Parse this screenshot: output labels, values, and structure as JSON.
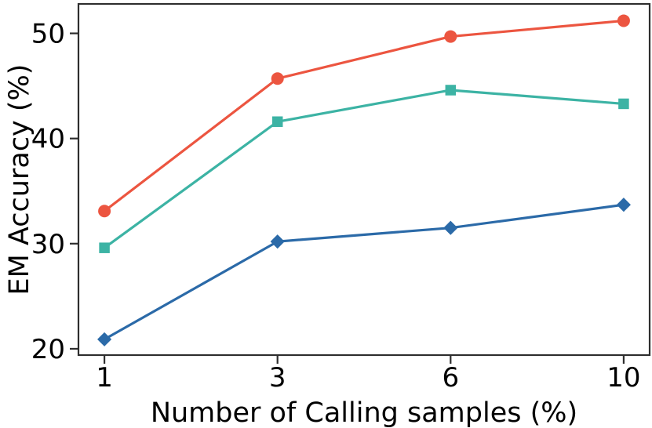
{
  "figure": {
    "background": "#ffffff",
    "axis_color": "#2e2e2e",
    "text_color": "#000000"
  },
  "chart_data": {
    "type": "line",
    "title": "",
    "xlabel": "Number of Calling samples (%)",
    "ylabel": "EM Accuracy (%)",
    "categories": [
      "1",
      "3",
      "6",
      "10"
    ],
    "x_values": [
      1,
      3,
      6,
      10
    ],
    "series": [
      {
        "name": "red-circle-series",
        "marker": "circle",
        "color": "#ec5540",
        "values": [
          33.1,
          45.7,
          49.7,
          51.2
        ]
      },
      {
        "name": "teal-square-series",
        "marker": "square",
        "color": "#3cb3a4",
        "values": [
          29.6,
          41.6,
          44.6,
          43.3
        ]
      },
      {
        "name": "blue-diamond-series",
        "marker": "diamond",
        "color": "#2b6aa8",
        "values": [
          20.9,
          30.2,
          31.5,
          33.7
        ]
      }
    ],
    "y_ticks": [
      20,
      30,
      40,
      50
    ],
    "ylim": [
      19.4,
      52.8
    ],
    "grid": false,
    "legend": null
  }
}
